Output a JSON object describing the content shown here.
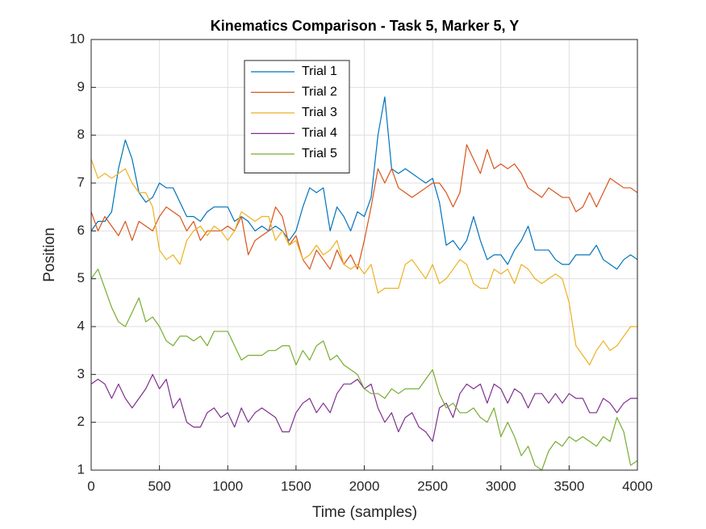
{
  "chart_data": {
    "type": "line",
    "title": "Kinematics Comparison - Task 5, Marker 5, Y",
    "xlabel": "Time (samples)",
    "ylabel": "Position",
    "x": [
      0,
      50,
      100,
      150,
      200,
      250,
      300,
      350,
      400,
      450,
      500,
      550,
      600,
      650,
      700,
      750,
      800,
      850,
      900,
      950,
      1000,
      1050,
      1100,
      1150,
      1200,
      1250,
      1300,
      1350,
      1400,
      1450,
      1500,
      1550,
      1600,
      1650,
      1700,
      1750,
      1800,
      1850,
      1900,
      1950,
      2000,
      2050,
      2100,
      2150,
      2200,
      2250,
      2300,
      2350,
      2400,
      2450,
      2500,
      2550,
      2600,
      2650,
      2700,
      2750,
      2800,
      2850,
      2900,
      2950,
      3000,
      3050,
      3100,
      3150,
      3200,
      3250,
      3300,
      3350,
      3400,
      3450,
      3500,
      3550,
      3600,
      3650,
      3700,
      3750,
      3800,
      3850,
      3900,
      3950,
      4000
    ],
    "series": [
      {
        "name": "Trial 1",
        "color": "#0072bd",
        "values": [
          6.0,
          6.2,
          6.2,
          6.4,
          7.3,
          7.9,
          7.5,
          6.8,
          6.6,
          6.7,
          7.0,
          6.9,
          6.9,
          6.6,
          6.3,
          6.3,
          6.2,
          6.4,
          6.5,
          6.5,
          6.5,
          6.2,
          6.3,
          6.2,
          6.0,
          6.1,
          6.0,
          6.1,
          6.0,
          5.8,
          6.0,
          6.5,
          6.9,
          6.8,
          6.9,
          6.0,
          6.5,
          6.3,
          6.0,
          6.4,
          6.3,
          6.7,
          8.0,
          8.8,
          7.3,
          7.2,
          7.3,
          7.2,
          7.1,
          7.0,
          7.1,
          6.6,
          5.7,
          5.8,
          5.6,
          5.8,
          6.3,
          5.8,
          5.4,
          5.5,
          5.5,
          5.3,
          5.6,
          5.8,
          6.1,
          5.6,
          5.6,
          5.6,
          5.4,
          5.3,
          5.3,
          5.5,
          5.5,
          5.5,
          5.7,
          5.4,
          5.3,
          5.2,
          5.4,
          5.5,
          5.4
        ]
      },
      {
        "name": "Trial 2",
        "color": "#d95319",
        "values": [
          6.4,
          6.0,
          6.3,
          6.1,
          5.9,
          6.2,
          5.8,
          6.2,
          6.1,
          6.0,
          6.3,
          6.5,
          6.4,
          6.3,
          6.0,
          6.2,
          5.8,
          6.0,
          6.0,
          6.0,
          6.1,
          6.0,
          6.3,
          5.5,
          5.8,
          5.9,
          6.0,
          6.5,
          6.3,
          5.7,
          5.9,
          5.4,
          5.2,
          5.6,
          5.4,
          5.2,
          5.6,
          5.3,
          5.5,
          5.2,
          5.8,
          6.5,
          7.3,
          7.0,
          7.3,
          6.9,
          6.8,
          6.7,
          6.8,
          6.9,
          7.0,
          7.0,
          6.8,
          6.5,
          6.8,
          7.8,
          7.5,
          7.2,
          7.7,
          7.3,
          7.4,
          7.3,
          7.4,
          7.2,
          6.9,
          6.8,
          6.7,
          6.9,
          6.8,
          6.7,
          6.7,
          6.4,
          6.5,
          6.8,
          6.5,
          6.8,
          7.1,
          7.0,
          6.9,
          6.9,
          6.8
        ]
      },
      {
        "name": "Trial 3",
        "color": "#edb120",
        "values": [
          7.5,
          7.1,
          7.2,
          7.1,
          7.2,
          7.3,
          7.0,
          6.8,
          6.8,
          6.5,
          5.6,
          5.4,
          5.5,
          5.3,
          5.8,
          6.0,
          6.1,
          5.9,
          6.1,
          6.0,
          5.8,
          6.0,
          6.4,
          6.3,
          6.2,
          6.3,
          6.3,
          5.8,
          6.0,
          5.7,
          5.8,
          5.4,
          5.5,
          5.7,
          5.5,
          5.6,
          5.8,
          5.3,
          5.2,
          5.3,
          5.1,
          5.3,
          4.7,
          4.8,
          4.8,
          4.8,
          5.3,
          5.4,
          5.2,
          5.0,
          5.3,
          4.9,
          5.0,
          5.2,
          5.4,
          5.3,
          4.9,
          4.8,
          4.8,
          5.2,
          5.1,
          5.2,
          4.9,
          5.3,
          5.2,
          5.0,
          4.9,
          5.0,
          5.1,
          5.0,
          4.5,
          3.6,
          3.4,
          3.2,
          3.5,
          3.7,
          3.5,
          3.6,
          3.8,
          4.0,
          4.0
        ]
      },
      {
        "name": "Trial 4",
        "color": "#7e2f8e",
        "values": [
          2.8,
          2.9,
          2.8,
          2.5,
          2.8,
          2.5,
          2.3,
          2.5,
          2.7,
          3.0,
          2.7,
          2.9,
          2.3,
          2.5,
          2.0,
          1.9,
          1.9,
          2.2,
          2.3,
          2.1,
          2.2,
          1.9,
          2.3,
          2.0,
          2.2,
          2.3,
          2.2,
          2.1,
          1.8,
          1.8,
          2.2,
          2.4,
          2.5,
          2.2,
          2.4,
          2.2,
          2.6,
          2.8,
          2.8,
          2.9,
          2.7,
          2.8,
          2.3,
          2.0,
          2.2,
          1.8,
          2.1,
          2.2,
          1.9,
          1.8,
          1.6,
          2.3,
          2.4,
          2.1,
          2.6,
          2.8,
          2.7,
          2.8,
          2.4,
          2.8,
          2.7,
          2.4,
          2.7,
          2.6,
          2.3,
          2.6,
          2.6,
          2.4,
          2.6,
          2.4,
          2.6,
          2.5,
          2.5,
          2.2,
          2.2,
          2.5,
          2.4,
          2.2,
          2.4,
          2.5,
          2.5
        ]
      },
      {
        "name": "Trial 5",
        "color": "#77ac30",
        "values": [
          5.0,
          5.2,
          4.8,
          4.4,
          4.1,
          4.0,
          4.3,
          4.6,
          4.1,
          4.2,
          4.0,
          3.7,
          3.6,
          3.8,
          3.8,
          3.7,
          3.8,
          3.6,
          3.9,
          3.9,
          3.9,
          3.6,
          3.3,
          3.4,
          3.4,
          3.4,
          3.5,
          3.5,
          3.6,
          3.6,
          3.2,
          3.5,
          3.3,
          3.6,
          3.7,
          3.3,
          3.4,
          3.2,
          3.1,
          3.0,
          2.7,
          2.6,
          2.6,
          2.5,
          2.7,
          2.6,
          2.7,
          2.7,
          2.7,
          2.9,
          3.1,
          2.6,
          2.3,
          2.4,
          2.2,
          2.2,
          2.3,
          2.1,
          2.0,
          2.3,
          1.7,
          2.0,
          1.7,
          1.3,
          1.5,
          1.1,
          1.0,
          1.4,
          1.6,
          1.5,
          1.7,
          1.6,
          1.7,
          1.6,
          1.5,
          1.7,
          1.6,
          2.1,
          1.8,
          1.1,
          1.2
        ]
      }
    ],
    "xlim": [
      0,
      4000
    ],
    "xticks": [
      0,
      500,
      1000,
      1500,
      2000,
      2500,
      3000,
      3500,
      4000
    ],
    "ylim": [
      1,
      10
    ],
    "yticks": [
      1,
      2,
      3,
      4,
      5,
      6,
      7,
      8,
      9,
      10
    ],
    "grid": true
  }
}
